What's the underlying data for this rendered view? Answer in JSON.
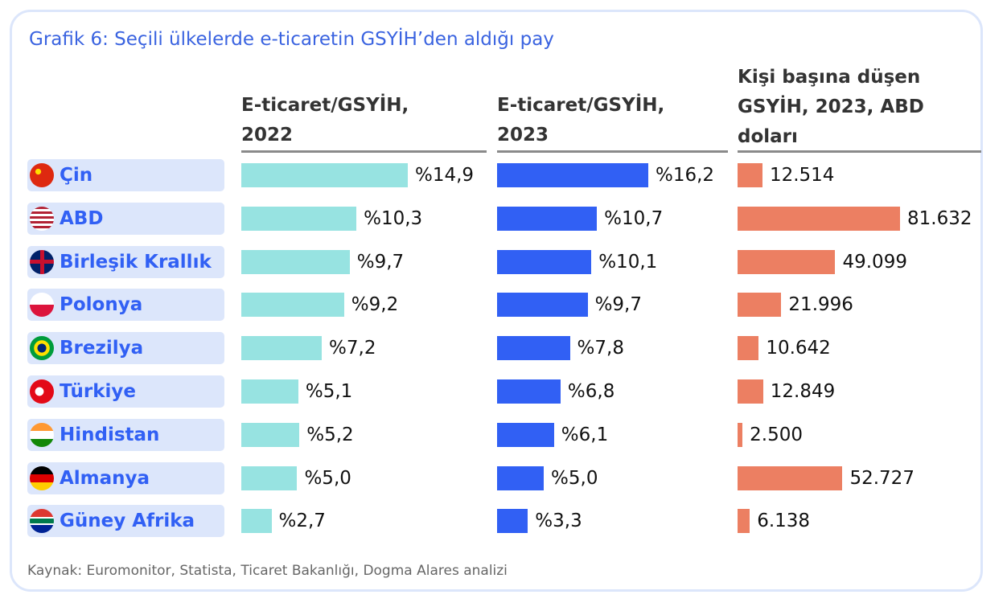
{
  "chart_data": {
    "type": "bar",
    "title": "Grafik 6: Seçili ülkelerde e-ticaretin GSYİH’den aldığı pay",
    "categories": [
      "Çin",
      "ABD",
      "Birleşik Krallık",
      "Polonya",
      "Brezilya",
      "Türkiye",
      "Hindistan",
      "Almanya",
      "Güney Afrika"
    ],
    "series": [
      {
        "name": "E-ticaret/GSYİH, 2022",
        "color": "#97e3e1",
        "values": [
          14.9,
          10.3,
          9.7,
          9.2,
          7.2,
          5.1,
          5.2,
          5.0,
          2.7
        ],
        "value_labels": [
          "%14,9",
          "%10,3",
          "%9,7",
          "%9,2",
          "%7,2",
          "%5,1",
          "%5,2",
          "%5,0",
          "%2,7"
        ]
      },
      {
        "name": "E-ticaret/GSYİH, 2023",
        "color": "#3160f4",
        "values": [
          16.2,
          10.7,
          10.1,
          9.7,
          7.8,
          6.8,
          6.1,
          5.0,
          3.3
        ],
        "value_labels": [
          "%16,2",
          "%10,7",
          "%10,1",
          "%9,7",
          "%7,8",
          "%6,8",
          "%6,1",
          "%5,0",
          "%3,3"
        ]
      },
      {
        "name": "Kişi başına düşen GSYİH, 2023, ABD doları",
        "color": "#ec7f62",
        "values": [
          12514,
          81632,
          49099,
          21996,
          10642,
          12849,
          2500,
          52727,
          6138
        ],
        "value_labels": [
          "12.514",
          "81.632",
          "49.099",
          "21.996",
          "10.642",
          "12.849",
          "2.500",
          "52.727",
          "6.138"
        ]
      }
    ],
    "source": "Kaynak: Euromonitor, Statista, Ticaret Bakanlığı, Dogma Alares analizi"
  }
}
